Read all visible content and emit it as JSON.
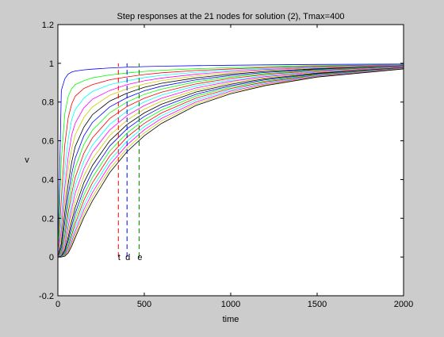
{
  "chart_data": {
    "type": "line",
    "title": "Step responses at the 21 nodes for solution (2), Tmax=400",
    "xlabel": "time",
    "ylabel": "v",
    "xlim": [
      0,
      2000
    ],
    "ylim": [
      -0.2,
      1.2
    ],
    "xticks": [
      {
        "value": 0,
        "label": "0"
      },
      {
        "value": 500,
        "label": "500"
      },
      {
        "value": 1000,
        "label": "1000"
      },
      {
        "value": 1500,
        "label": "1500"
      },
      {
        "value": 2000,
        "label": "2000"
      }
    ],
    "yticks": [
      {
        "value": -0.2,
        "label": "-0.2"
      },
      {
        "value": 0,
        "label": "0"
      },
      {
        "value": 0.2,
        "label": "0.2"
      },
      {
        "value": 0.4,
        "label": "0.4"
      },
      {
        "value": 0.6,
        "label": "0.6"
      },
      {
        "value": 0.8,
        "label": "0.8"
      },
      {
        "value": 1,
        "label": "1"
      },
      {
        "value": 1.2,
        "label": "1.2"
      }
    ],
    "grid": false,
    "legend": "none",
    "x": [
      0,
      20,
      40,
      60,
      80,
      100,
      150,
      200,
      300,
      400,
      500,
      600,
      800,
      1000,
      1200,
      1500,
      2000
    ],
    "series": [
      {
        "color": "#0000ff",
        "values": [
          0,
          0.86,
          0.92,
          0.945,
          0.955,
          0.96,
          0.966,
          0.97,
          0.976,
          0.98,
          0.983,
          0.985,
          0.988,
          0.99,
          0.992,
          0.994,
          0.996
        ]
      },
      {
        "color": "#00ff00",
        "values": [
          0,
          0.5,
          0.74,
          0.83,
          0.87,
          0.89,
          0.91,
          0.925,
          0.94,
          0.95,
          0.958,
          0.964,
          0.972,
          0.978,
          0.983,
          0.988,
          0.993
        ]
      },
      {
        "color": "#ff0000",
        "values": [
          0,
          0.3,
          0.58,
          0.72,
          0.79,
          0.83,
          0.87,
          0.89,
          0.915,
          0.93,
          0.942,
          0.951,
          0.963,
          0.971,
          0.978,
          0.985,
          0.992
        ]
      },
      {
        "color": "#00ffff",
        "values": [
          0,
          0.2,
          0.45,
          0.61,
          0.71,
          0.76,
          0.82,
          0.855,
          0.89,
          0.91,
          0.926,
          0.938,
          0.954,
          0.965,
          0.973,
          0.982,
          0.991
        ]
      },
      {
        "color": "#ff00ff",
        "values": [
          0,
          0.14,
          0.36,
          0.52,
          0.63,
          0.69,
          0.77,
          0.815,
          0.86,
          0.89,
          0.91,
          0.924,
          0.944,
          0.958,
          0.968,
          0.979,
          0.99
        ]
      },
      {
        "color": "#cccc00",
        "values": [
          0,
          0.1,
          0.29,
          0.45,
          0.56,
          0.63,
          0.72,
          0.775,
          0.835,
          0.868,
          0.893,
          0.911,
          0.935,
          0.951,
          0.963,
          0.976,
          0.988
        ]
      },
      {
        "color": "#000000",
        "values": [
          0,
          0.07,
          0.23,
          0.38,
          0.49,
          0.57,
          0.67,
          0.735,
          0.805,
          0.846,
          0.876,
          0.897,
          0.925,
          0.944,
          0.958,
          0.972,
          0.987
        ]
      },
      {
        "color": "#0000ff",
        "values": [
          0,
          0.05,
          0.18,
          0.32,
          0.43,
          0.51,
          0.625,
          0.695,
          0.775,
          0.823,
          0.858,
          0.882,
          0.915,
          0.937,
          0.953,
          0.969,
          0.986
        ]
      },
      {
        "color": "#00ff00",
        "values": [
          0,
          0.035,
          0.14,
          0.27,
          0.38,
          0.46,
          0.58,
          0.655,
          0.745,
          0.8,
          0.84,
          0.867,
          0.905,
          0.929,
          0.947,
          0.966,
          0.985
        ]
      },
      {
        "color": "#ff0000",
        "values": [
          0,
          0.025,
          0.11,
          0.23,
          0.33,
          0.41,
          0.535,
          0.615,
          0.715,
          0.777,
          0.82,
          0.851,
          0.894,
          0.922,
          0.942,
          0.963,
          0.983
        ]
      },
      {
        "color": "#00ffff",
        "values": [
          0,
          0.018,
          0.085,
          0.19,
          0.29,
          0.37,
          0.495,
          0.578,
          0.685,
          0.753,
          0.801,
          0.836,
          0.884,
          0.914,
          0.936,
          0.959,
          0.982
        ]
      },
      {
        "color": "#ff00ff",
        "values": [
          0,
          0.012,
          0.065,
          0.16,
          0.25,
          0.33,
          0.455,
          0.542,
          0.656,
          0.73,
          0.782,
          0.82,
          0.873,
          0.907,
          0.931,
          0.956,
          0.981
        ]
      },
      {
        "color": "#cccc00",
        "values": [
          0,
          0.008,
          0.05,
          0.13,
          0.215,
          0.29,
          0.418,
          0.507,
          0.628,
          0.707,
          0.763,
          0.805,
          0.862,
          0.899,
          0.925,
          0.952,
          0.979
        ]
      },
      {
        "color": "#000000",
        "values": [
          0,
          0.005,
          0.038,
          0.105,
          0.185,
          0.255,
          0.383,
          0.473,
          0.6,
          0.684,
          0.744,
          0.789,
          0.852,
          0.892,
          0.92,
          0.949,
          0.978
        ]
      },
      {
        "color": "#0000ff",
        "values": [
          0,
          0.003,
          0.028,
          0.085,
          0.158,
          0.225,
          0.35,
          0.441,
          0.573,
          0.662,
          0.726,
          0.774,
          0.841,
          0.884,
          0.915,
          0.946,
          0.977
        ]
      },
      {
        "color": "#00ff00",
        "values": [
          0,
          0.002,
          0.02,
          0.068,
          0.134,
          0.197,
          0.32,
          0.411,
          0.547,
          0.64,
          0.708,
          0.759,
          0.831,
          0.877,
          0.909,
          0.943,
          0.976
        ]
      },
      {
        "color": "#ff0000",
        "values": [
          0,
          0.001,
          0.015,
          0.054,
          0.113,
          0.172,
          0.292,
          0.383,
          0.522,
          0.619,
          0.69,
          0.744,
          0.821,
          0.87,
          0.904,
          0.94,
          0.975
        ]
      },
      {
        "color": "#00ffff",
        "values": [
          0,
          0.001,
          0.011,
          0.043,
          0.095,
          0.15,
          0.267,
          0.357,
          0.498,
          0.598,
          0.673,
          0.73,
          0.811,
          0.863,
          0.899,
          0.937,
          0.974
        ]
      },
      {
        "color": "#ff00ff",
        "values": [
          0,
          0,
          0.008,
          0.034,
          0.08,
          0.131,
          0.244,
          0.333,
          0.476,
          0.579,
          0.657,
          0.716,
          0.801,
          0.856,
          0.894,
          0.934,
          0.973
        ]
      },
      {
        "color": "#cccc00",
        "values": [
          0,
          0,
          0.006,
          0.027,
          0.067,
          0.114,
          0.223,
          0.311,
          0.455,
          0.561,
          0.641,
          0.703,
          0.792,
          0.849,
          0.889,
          0.931,
          0.972
        ]
      },
      {
        "color": "#000000",
        "values": [
          0,
          0,
          0.004,
          0.021,
          0.056,
          0.099,
          0.204,
          0.29,
          0.436,
          0.544,
          0.626,
          0.69,
          0.783,
          0.843,
          0.885,
          0.929,
          0.971
        ]
      }
    ],
    "markers": [
      {
        "x": 350,
        "color": "#ff0000",
        "label": "t"
      },
      {
        "x": 400,
        "color": "#0000ff",
        "label": "d"
      },
      {
        "x": 470,
        "color": "#008000",
        "label": "e"
      }
    ],
    "marker_ymin": 0,
    "marker_ymax": 1
  }
}
